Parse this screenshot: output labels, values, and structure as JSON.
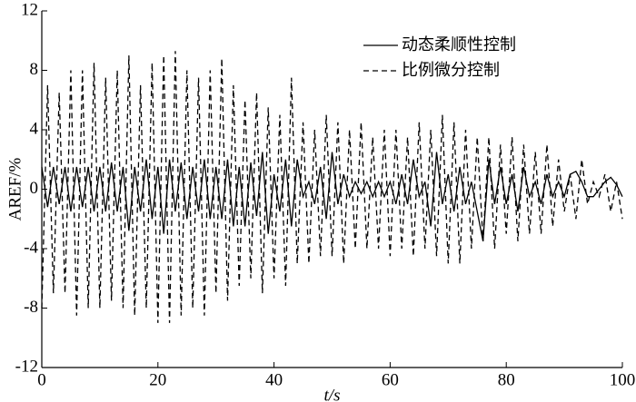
{
  "chart_data": {
    "type": "line",
    "x_label": "t/s",
    "y_label": "AREF/%",
    "x": [
      0,
      1,
      2,
      3,
      4,
      5,
      6,
      7,
      8,
      9,
      10,
      11,
      12,
      13,
      14,
      15,
      16,
      17,
      18,
      19,
      20,
      21,
      22,
      23,
      24,
      25,
      26,
      27,
      28,
      29,
      30,
      31,
      32,
      33,
      34,
      35,
      36,
      37,
      38,
      39,
      40,
      41,
      42,
      43,
      44,
      45,
      46,
      47,
      48,
      49,
      50,
      51,
      52,
      53,
      54,
      55,
      56,
      57,
      58,
      59,
      60,
      61,
      62,
      63,
      64,
      65,
      66,
      67,
      68,
      69,
      70,
      71,
      72,
      73,
      74,
      75,
      76,
      77,
      78,
      79,
      80,
      81,
      82,
      83,
      84,
      85,
      86,
      87,
      88,
      89,
      90,
      91,
      92,
      93,
      94,
      95,
      96,
      97,
      98,
      99,
      100
    ],
    "series": [
      {
        "name": "动态柔顺性控制",
        "color": "#000000",
        "dash": "none",
        "values": [
          1.5,
          -1.2,
          1.5,
          -1,
          1.5,
          -1.5,
          1.5,
          -1.2,
          1.5,
          -1.5,
          1.5,
          -1.5,
          1.8,
          -1.5,
          1.5,
          -2.8,
          1.5,
          -1.5,
          2,
          -2,
          1.5,
          -3,
          2,
          -1.5,
          1.8,
          -2,
          1.5,
          -1.5,
          2,
          -2,
          1.5,
          -2,
          2,
          -2.5,
          1.5,
          -2.5,
          1.8,
          -1.8,
          2.5,
          -3,
          1,
          -1.5,
          2,
          -2.5,
          2,
          -0.5,
          0.5,
          -1,
          1.5,
          -2,
          2.5,
          -1,
          1,
          -0.5,
          0.5,
          -0.3,
          0.5,
          -0.5,
          0.5,
          -0.5,
          0.5,
          -1,
          1,
          -1,
          2,
          -0.5,
          0.5,
          -2.5,
          2.5,
          -1,
          1,
          -1.5,
          1.5,
          -1,
          0.5,
          -1.5,
          -3.5,
          2,
          -1,
          1.5,
          -1,
          1,
          -1.5,
          1.5,
          -0.5,
          0.5,
          -1,
          1,
          -0.5,
          0.5,
          -0.5,
          1,
          1.2,
          0.5,
          -0.5,
          -0.5,
          0,
          0.5,
          0.8,
          0.3,
          -0.5
        ]
      },
      {
        "name": "比例微分控制",
        "color": "#000000",
        "dash": "6 4",
        "values": [
          -8,
          7,
          -7,
          6.5,
          -7,
          8,
          -8.5,
          8,
          -8,
          8.5,
          -8,
          7.5,
          -7.5,
          8,
          -8,
          9,
          -8.5,
          7,
          -8,
          8.5,
          -9,
          9,
          -9,
          9.3,
          -8.5,
          8,
          -8,
          7.5,
          -8.5,
          8,
          -7,
          8.8,
          -7.5,
          7,
          -6.5,
          6,
          -6,
          6.5,
          -7,
          5.5,
          -6,
          5,
          -6.5,
          7.5,
          -5,
          4.5,
          -5,
          4,
          -4.5,
          5,
          -4.5,
          4.5,
          -5,
          4,
          -4,
          4.5,
          -4,
          3.5,
          -4,
          4,
          -4.5,
          4,
          -4,
          3.5,
          -4.5,
          4.5,
          -4,
          4,
          -4.5,
          5,
          -5,
          4.5,
          -5,
          4,
          -4,
          3.5,
          -3.5,
          3.5,
          -4,
          3,
          -3,
          3.5,
          -3.5,
          3,
          -3,
          2.5,
          -3,
          3,
          -2.5,
          2,
          -1.5,
          1,
          -2,
          2,
          -1,
          0.5,
          -0.5,
          1,
          -1.5,
          0.5,
          -2
        ]
      }
    ],
    "xlim": [
      0,
      100
    ],
    "xticks": [
      0,
      20,
      40,
      60,
      80,
      100
    ],
    "ylim": [
      -12,
      12
    ],
    "yticks": [
      -12,
      -8,
      -4,
      0,
      4,
      8,
      12
    ]
  }
}
